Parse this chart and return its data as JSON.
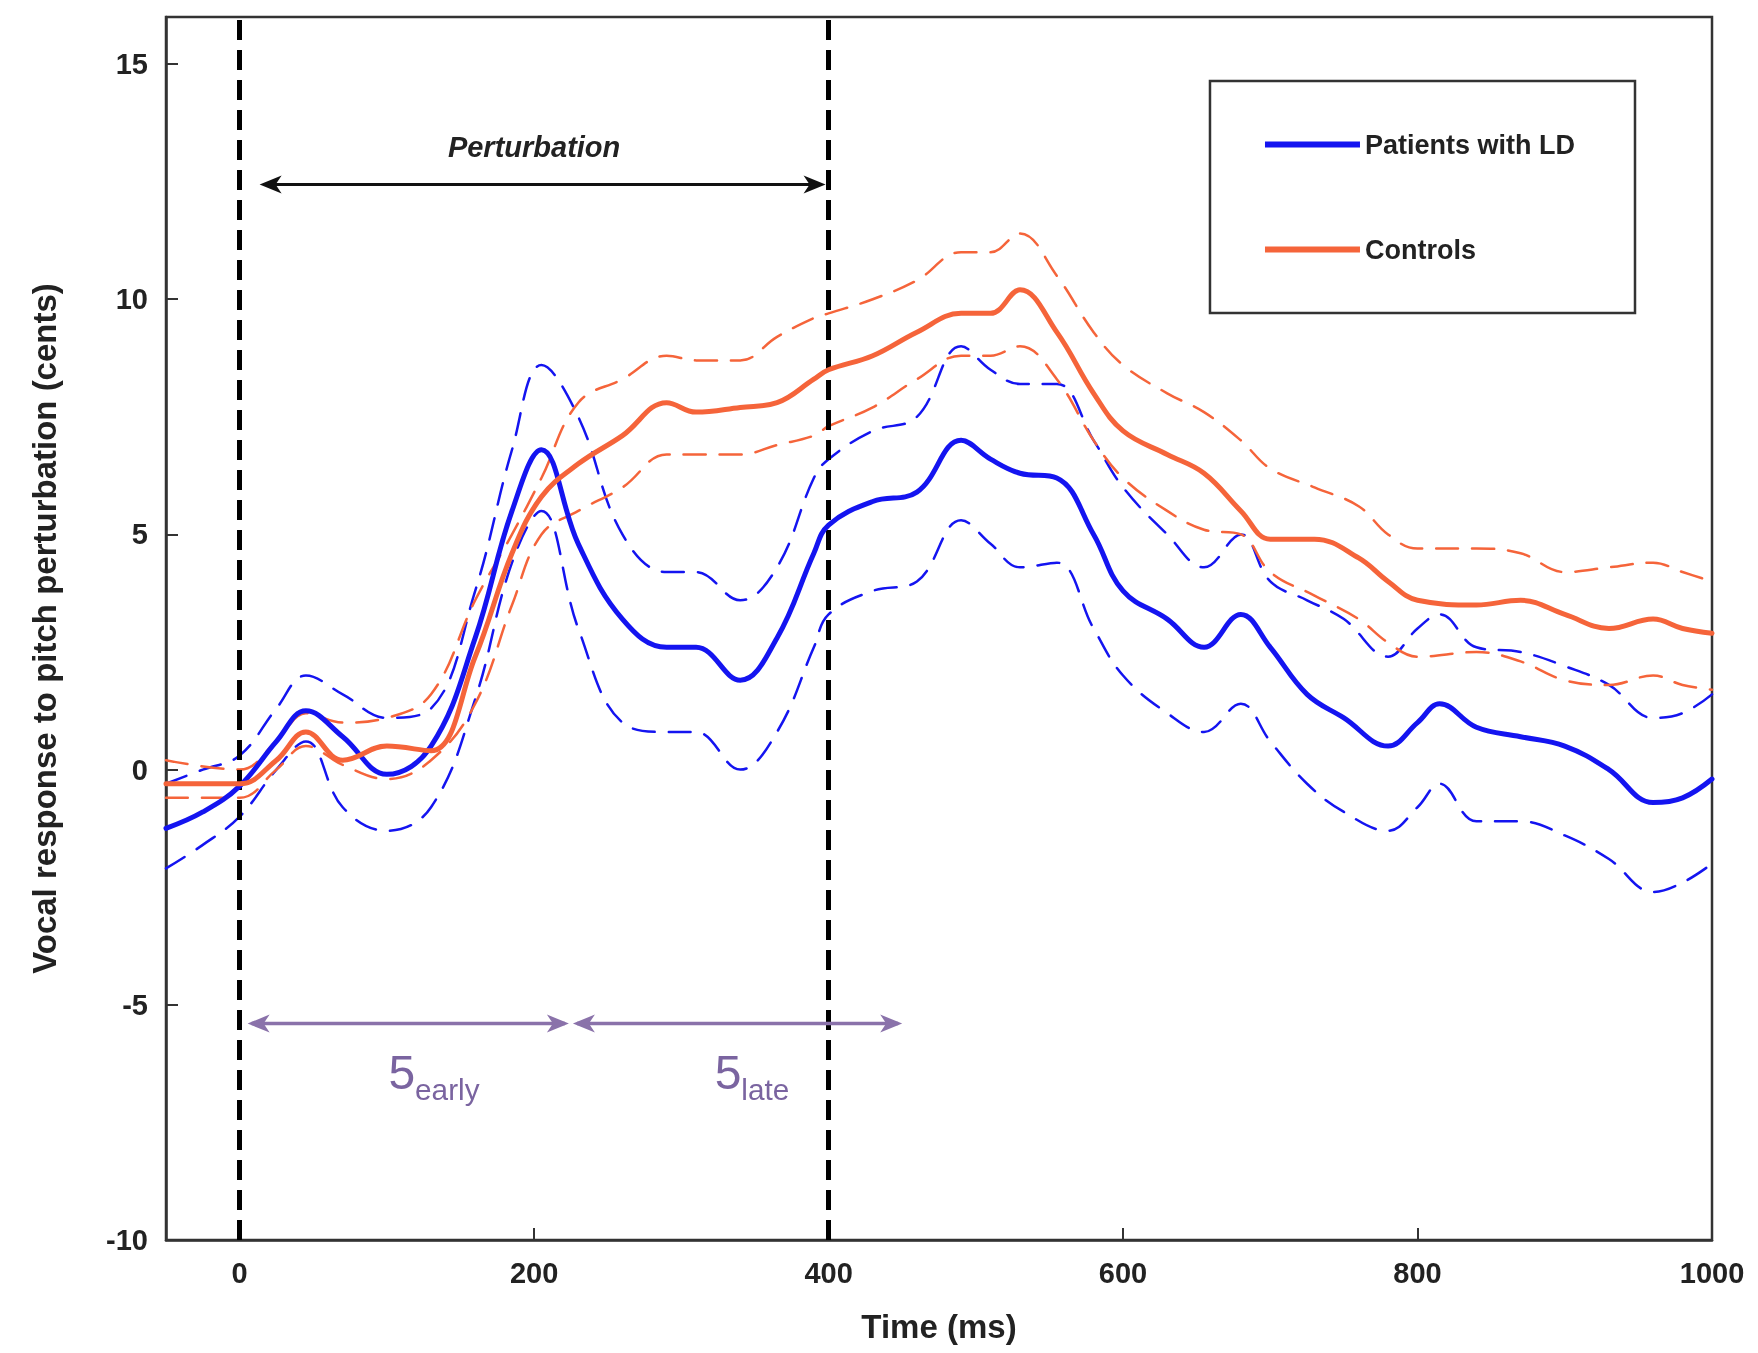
{
  "chart_data": {
    "type": "line",
    "xlabel": "Time (ms)",
    "ylabel": "Vocal response to pitch perturbation (cents)",
    "xlim": [
      -50,
      1000
    ],
    "xticks": [
      0,
      200,
      400,
      600,
      800,
      1000
    ],
    "ylim": [
      -10,
      16
    ],
    "yticks": [
      -10,
      -5,
      0,
      5,
      10,
      15
    ],
    "legend": "top right",
    "marker": "none",
    "series": [
      {
        "name": "Patients with LD",
        "color": "#1414f0",
        "line_style": "solid",
        "x": [
          -50,
          -25,
          0,
          25,
          45,
          70,
          100,
          130,
          160,
          185,
          205,
          230,
          260,
          290,
          310,
          340,
          365,
          390,
          400,
          430,
          460,
          490,
          510,
          530,
          555,
          580,
          600,
          630,
          655,
          680,
          700,
          725,
          750,
          780,
          800,
          815,
          840,
          870,
          900,
          930,
          960,
          980,
          1000
        ],
        "values": [
          -1.25,
          -0.9,
          -0.35,
          0.6,
          1.25,
          0.7,
          -0.1,
          0.5,
          2.8,
          5.5,
          6.8,
          4.8,
          3.2,
          2.6,
          2.6,
          1.9,
          2.8,
          4.6,
          5.2,
          5.7,
          5.9,
          7.0,
          6.6,
          6.3,
          6.2,
          5.0,
          3.8,
          3.2,
          2.6,
          3.3,
          2.6,
          1.6,
          1.1,
          0.5,
          1.0,
          1.4,
          0.9,
          0.7,
          0.5,
          0.0,
          -0.7,
          -0.6,
          -0.2
        ]
      },
      {
        "name": "Controls",
        "color": "#f5643a",
        "line_style": "solid",
        "x": [
          -50,
          0,
          25,
          45,
          70,
          100,
          130,
          160,
          185,
          205,
          230,
          260,
          290,
          310,
          340,
          365,
          390,
          400,
          430,
          460,
          490,
          510,
          530,
          555,
          580,
          600,
          630,
          655,
          680,
          700,
          730,
          760,
          780,
          800,
          840,
          870,
          900,
          930,
          960,
          980,
          1000
        ],
        "values": [
          -0.3,
          -0.3,
          0.2,
          0.8,
          0.2,
          0.5,
          0.4,
          2.4,
          4.6,
          5.8,
          6.5,
          7.1,
          7.8,
          7.6,
          7.7,
          7.8,
          8.3,
          8.5,
          8.8,
          9.3,
          9.7,
          9.7,
          10.2,
          9.3,
          8.0,
          7.2,
          6.7,
          6.3,
          5.5,
          4.9,
          4.9,
          4.5,
          4.0,
          3.6,
          3.5,
          3.6,
          3.3,
          3.0,
          3.2,
          3.0,
          2.9
        ]
      },
      {
        "color": "#1414f0",
        "line_style": "dashed",
        "x": [
          -50,
          -25,
          0,
          25,
          45,
          70,
          100,
          130,
          160,
          185,
          205,
          230,
          260,
          290,
          310,
          340,
          365,
          390,
          400,
          430,
          460,
          490,
          510,
          530,
          555,
          580,
          600,
          630,
          655,
          680,
          700,
          725,
          750,
          780,
          800,
          815,
          840,
          870,
          900,
          930,
          960,
          980,
          1000
        ],
        "values": [
          -0.3,
          0,
          0.3,
          1.3,
          2.0,
          1.6,
          1.1,
          1.3,
          3.8,
          6.8,
          8.6,
          7.5,
          5.0,
          4.2,
          4.2,
          3.6,
          4.3,
          6.2,
          6.6,
          7.2,
          7.5,
          9.0,
          8.5,
          8.2,
          8.2,
          7.0,
          6.0,
          5.0,
          4.3,
          5.0,
          4.0,
          3.6,
          3.2,
          2.4,
          3.0,
          3.3,
          2.6,
          2.5,
          2.2,
          1.8,
          1.1,
          1.2,
          1.6
        ]
      },
      {
        "color": "#1414f0",
        "line_style": "dashed",
        "x": [
          -50,
          -25,
          0,
          25,
          45,
          70,
          100,
          130,
          160,
          185,
          205,
          230,
          260,
          290,
          310,
          340,
          365,
          390,
          400,
          430,
          460,
          490,
          510,
          530,
          555,
          580,
          600,
          630,
          655,
          680,
          700,
          725,
          750,
          780,
          800,
          815,
          840,
          870,
          900,
          930,
          960,
          980,
          1000
        ],
        "values": [
          -2.1,
          -1.6,
          -1.0,
          0,
          0.6,
          -0.8,
          -1.3,
          -0.8,
          1.5,
          4.4,
          5.5,
          3.0,
          1.0,
          0.8,
          0.8,
          0,
          0.8,
          2.6,
          3.3,
          3.8,
          4.0,
          5.3,
          4.8,
          4.3,
          4.4,
          3.0,
          2.0,
          1.2,
          0.8,
          1.4,
          0.6,
          -0.3,
          -0.9,
          -1.3,
          -0.8,
          -0.3,
          -1.1,
          -1.1,
          -1.4,
          -1.9,
          -2.6,
          -2.4,
          -2.0
        ]
      },
      {
        "color": "#f5643a",
        "line_style": "dashed",
        "x": [
          -50,
          0,
          25,
          45,
          70,
          100,
          130,
          160,
          185,
          205,
          230,
          260,
          290,
          310,
          340,
          365,
          390,
          400,
          430,
          460,
          490,
          510,
          530,
          555,
          580,
          600,
          630,
          655,
          680,
          700,
          730,
          760,
          780,
          800,
          840,
          870,
          900,
          930,
          960,
          980,
          1000
        ],
        "values": [
          0.2,
          0.0,
          0.6,
          1.2,
          1.0,
          1.1,
          1.6,
          3.6,
          5.0,
          6.2,
          7.8,
          8.3,
          8.8,
          8.7,
          8.7,
          9.2,
          9.6,
          9.7,
          10.0,
          10.4,
          11.0,
          11.0,
          11.4,
          10.5,
          9.3,
          8.6,
          8.0,
          7.6,
          7.0,
          6.4,
          6.0,
          5.6,
          5.0,
          4.7,
          4.7,
          4.6,
          4.2,
          4.3,
          4.4,
          4.2,
          4.0
        ]
      },
      {
        "color": "#f5643a",
        "line_style": "dashed",
        "x": [
          -50,
          0,
          25,
          45,
          70,
          100,
          130,
          160,
          185,
          205,
          230,
          260,
          290,
          310,
          340,
          365,
          390,
          400,
          430,
          460,
          490,
          510,
          530,
          555,
          580,
          600,
          630,
          655,
          680,
          700,
          730,
          760,
          780,
          800,
          840,
          870,
          900,
          930,
          960,
          980,
          1000
        ],
        "values": [
          -0.6,
          -0.6,
          0,
          0.5,
          0.1,
          -0.2,
          0.2,
          1.4,
          3.5,
          5.0,
          5.5,
          6.0,
          6.7,
          6.7,
          6.7,
          6.9,
          7.1,
          7.3,
          7.7,
          8.3,
          8.8,
          8.8,
          9.0,
          8.3,
          7.0,
          6.2,
          5.5,
          5.1,
          5.0,
          4.2,
          3.7,
          3.2,
          2.7,
          2.4,
          2.5,
          2.3,
          1.9,
          1.8,
          2.0,
          1.8,
          1.7
        ]
      }
    ],
    "ref_lines": [
      {
        "axis": "x",
        "value": 0,
        "color": "#000000",
        "line_style": "dashed"
      },
      {
        "axis": "x",
        "value": 400,
        "color": "#000000",
        "line_style": "dashed"
      }
    ],
    "annotations": [
      "Perturbation",
      "5$_{early}$",
      "5$_{late}$"
    ]
  }
}
